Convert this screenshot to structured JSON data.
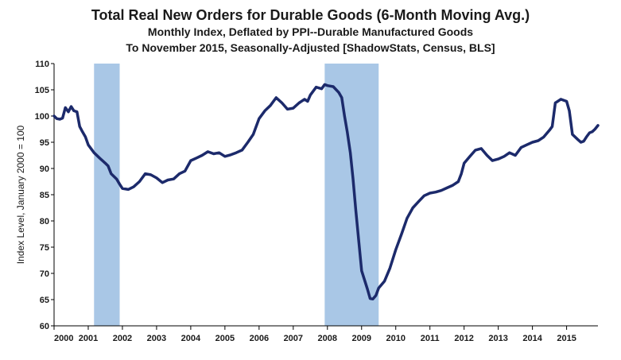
{
  "chart_data": {
    "type": "line",
    "title": "Total Real New Orders for Durable Goods (6-Month Moving Avg.)",
    "subtitle_1": "Monthly Index, Deflated by PPI--Durable Manufactured Goods",
    "subtitle_2": "To November 2015, Seasonally-Adjusted [ShadowStats, Census, BLS]",
    "ylabel": "Index Level, January 2000 = 100",
    "xlabel": "",
    "xlim": [
      2000.0,
      2015.917
    ],
    "ylim": [
      60,
      110
    ],
    "yticks": [
      60,
      65,
      70,
      75,
      80,
      85,
      90,
      95,
      100,
      105,
      110
    ],
    "xtick_labels": [
      "2000",
      "2001",
      "2002",
      "2003",
      "2004",
      "2005",
      "2006",
      "2007",
      "2008",
      "2009",
      "2010",
      "2011",
      "2012",
      "2013",
      "2014",
      "2015"
    ],
    "recessions": [
      [
        2001.17,
        2001.92
      ],
      [
        2007.92,
        2009.5
      ]
    ],
    "grid": "none",
    "legend": "none",
    "colors": {
      "line": "#1c2a6b",
      "recession": "#a9c7e6",
      "axis": "#000000"
    },
    "points": [
      [
        2000.0,
        100.0
      ],
      [
        2000.08,
        99.5
      ],
      [
        2000.17,
        99.4
      ],
      [
        2000.25,
        99.6
      ],
      [
        2000.33,
        101.6
      ],
      [
        2000.42,
        100.8
      ],
      [
        2000.5,
        101.8
      ],
      [
        2000.58,
        101.0
      ],
      [
        2000.67,
        100.8
      ],
      [
        2000.75,
        98.0
      ],
      [
        2000.83,
        97.0
      ],
      [
        2000.92,
        96.0
      ],
      [
        2001.0,
        94.5
      ],
      [
        2001.17,
        93.0
      ],
      [
        2001.33,
        92.0
      ],
      [
        2001.5,
        91.0
      ],
      [
        2001.58,
        90.5
      ],
      [
        2001.67,
        89.0
      ],
      [
        2001.83,
        88.0
      ],
      [
        2001.92,
        87.0
      ],
      [
        2002.0,
        86.2
      ],
      [
        2002.17,
        86.0
      ],
      [
        2002.33,
        86.5
      ],
      [
        2002.5,
        87.5
      ],
      [
        2002.67,
        89.0
      ],
      [
        2002.83,
        88.8
      ],
      [
        2003.0,
        88.2
      ],
      [
        2003.17,
        87.3
      ],
      [
        2003.33,
        87.8
      ],
      [
        2003.5,
        88.0
      ],
      [
        2003.67,
        89.0
      ],
      [
        2003.83,
        89.5
      ],
      [
        2004.0,
        91.5
      ],
      [
        2004.17,
        92.0
      ],
      [
        2004.33,
        92.5
      ],
      [
        2004.5,
        93.2
      ],
      [
        2004.67,
        92.8
      ],
      [
        2004.83,
        93.0
      ],
      [
        2005.0,
        92.3
      ],
      [
        2005.17,
        92.6
      ],
      [
        2005.33,
        93.0
      ],
      [
        2005.5,
        93.5
      ],
      [
        2005.67,
        95.0
      ],
      [
        2005.83,
        96.5
      ],
      [
        2006.0,
        99.5
      ],
      [
        2006.17,
        101.0
      ],
      [
        2006.33,
        102.0
      ],
      [
        2006.5,
        103.5
      ],
      [
        2006.67,
        102.5
      ],
      [
        2006.83,
        101.3
      ],
      [
        2007.0,
        101.5
      ],
      [
        2007.17,
        102.5
      ],
      [
        2007.33,
        103.2
      ],
      [
        2007.42,
        102.8
      ],
      [
        2007.5,
        104.0
      ],
      [
        2007.67,
        105.5
      ],
      [
        2007.83,
        105.2
      ],
      [
        2007.92,
        106.0
      ],
      [
        2008.0,
        105.8
      ],
      [
        2008.17,
        105.6
      ],
      [
        2008.33,
        104.5
      ],
      [
        2008.42,
        103.5
      ],
      [
        2008.5,
        100.0
      ],
      [
        2008.58,
        97.0
      ],
      [
        2008.67,
        93.0
      ],
      [
        2008.75,
        88.0
      ],
      [
        2008.83,
        82.0
      ],
      [
        2008.92,
        76.0
      ],
      [
        2009.0,
        70.5
      ],
      [
        2009.17,
        67.0
      ],
      [
        2009.25,
        65.2
      ],
      [
        2009.33,
        65.1
      ],
      [
        2009.42,
        65.8
      ],
      [
        2009.5,
        67.2
      ],
      [
        2009.67,
        68.5
      ],
      [
        2009.83,
        71.0
      ],
      [
        2010.0,
        74.5
      ],
      [
        2010.17,
        77.5
      ],
      [
        2010.33,
        80.5
      ],
      [
        2010.5,
        82.5
      ],
      [
        2010.67,
        83.7
      ],
      [
        2010.83,
        84.8
      ],
      [
        2011.0,
        85.3
      ],
      [
        2011.17,
        85.5
      ],
      [
        2011.33,
        85.8
      ],
      [
        2011.5,
        86.3
      ],
      [
        2011.67,
        86.8
      ],
      [
        2011.83,
        87.5
      ],
      [
        2011.92,
        89.0
      ],
      [
        2012.0,
        91.0
      ],
      [
        2012.17,
        92.3
      ],
      [
        2012.33,
        93.5
      ],
      [
        2012.5,
        93.8
      ],
      [
        2012.67,
        92.5
      ],
      [
        2012.83,
        91.5
      ],
      [
        2013.0,
        91.8
      ],
      [
        2013.17,
        92.3
      ],
      [
        2013.33,
        93.0
      ],
      [
        2013.5,
        92.5
      ],
      [
        2013.67,
        94.0
      ],
      [
        2013.83,
        94.5
      ],
      [
        2014.0,
        95.0
      ],
      [
        2014.17,
        95.3
      ],
      [
        2014.33,
        96.0
      ],
      [
        2014.5,
        97.3
      ],
      [
        2014.58,
        98.0
      ],
      [
        2014.67,
        102.5
      ],
      [
        2014.83,
        103.2
      ],
      [
        2015.0,
        102.8
      ],
      [
        2015.08,
        101.0
      ],
      [
        2015.17,
        96.5
      ],
      [
        2015.33,
        95.5
      ],
      [
        2015.42,
        95.0
      ],
      [
        2015.5,
        95.2
      ],
      [
        2015.58,
        96.0
      ],
      [
        2015.67,
        96.8
      ],
      [
        2015.75,
        97.0
      ],
      [
        2015.83,
        97.5
      ],
      [
        2015.917,
        98.2
      ]
    ]
  }
}
